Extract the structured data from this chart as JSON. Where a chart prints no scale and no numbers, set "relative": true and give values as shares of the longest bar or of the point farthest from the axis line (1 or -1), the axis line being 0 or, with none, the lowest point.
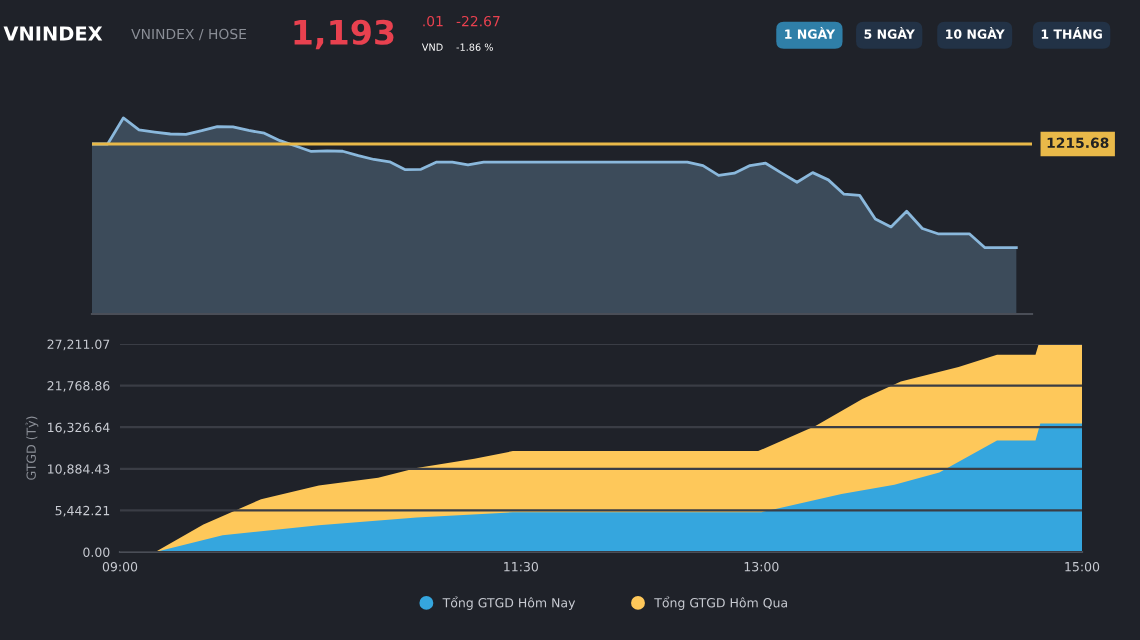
{
  "chart_data": [
    {
      "type": "area",
      "title": "VNINDEX",
      "subtitle": "VNINDEX / HOSE",
      "relative": true,
      "categories": [
        null,
        null,
        null,
        null,
        null,
        null,
        null,
        null,
        null,
        null,
        null,
        null,
        null,
        null,
        null,
        null,
        null,
        null,
        null,
        null,
        null,
        null,
        null,
        null,
        null,
        null,
        null,
        null,
        null,
        null,
        null,
        null,
        null,
        null,
        null,
        null,
        null,
        null,
        null,
        null,
        null,
        null,
        null,
        null,
        null,
        null,
        null,
        null,
        null,
        null,
        null,
        null,
        null,
        null,
        null,
        null,
        null,
        null,
        null,
        null
      ],
      "annotations": [
        "1,193",
        ".01",
        "VND",
        "-22.67",
        "-1.86 %",
        "1 NGÀY",
        "5 NGÀY",
        "10 NGÀY",
        "1 THÁNG",
        "1215.68"
      ],
      "series": [
        {
          "color": "#8ab8dc",
          "values": [
            0.867,
            0.867,
            1.0,
            0.939,
            0.928,
            0.918,
            0.916,
            0.935,
            0.956,
            0.954,
            0.936,
            0.922,
            0.884,
            0.857,
            0.829,
            0.832,
            0.83,
            0.808,
            0.788,
            0.776,
            0.736,
            0.738,
            0.775,
            0.775,
            0.76,
            0.775,
            0.775,
            0.775,
            0.775,
            0.775,
            0.775,
            0.775,
            0.775,
            0.775,
            0.775,
            0.775,
            0.775,
            0.775,
            0.775,
            0.757,
            0.707,
            0.718,
            0.757,
            0.769,
            0.72,
            0.672,
            0.721,
            0.684,
            0.611,
            0.605,
            0.485,
            0.444,
            0.524,
            0.436,
            0.409,
            0.409,
            0.409,
            0.338,
            0.338,
            0.338
          ]
        }
      ],
      "ref_lines": [
        {
          "axis": "y",
          "value": 0.867,
          "color": "#e9b949"
        }
      ]
    },
    {
      "type": "area",
      "ylabel": "GTGD (Tỷ)",
      "xlim": [
        9,
        15
      ],
      "xticks": [
        {
          "value": 9,
          "label": "09:00"
        },
        {
          "value": 11.5,
          "label": "11:30"
        },
        {
          "value": 13,
          "label": "13:00"
        },
        {
          "value": 15,
          "label": "15:00"
        }
      ],
      "ylim": [
        0,
        27211.07
      ],
      "yticks": [
        {
          "value": 0,
          "label": "0.00"
        },
        {
          "value": 5442.21,
          "label": "5,442.21"
        },
        {
          "value": 10884.43,
          "label": "10,884.43"
        },
        {
          "value": 16326.64,
          "label": "16,326.64"
        },
        {
          "value": 21768.86,
          "label": "21,768.86"
        },
        {
          "value": 27211.07,
          "label": "27,211.07"
        }
      ],
      "grid": "y",
      "legend": "bottom",
      "series": [
        {
          "name": "Tổng GTGD Hôm Qua",
          "color": "#fec85a",
          "x": [
            9.22,
            9.52,
            9.88,
            10.24,
            10.61,
            10.85,
            11.21,
            11.45,
            12.98,
            13.34,
            13.63,
            13.87,
            14.23,
            14.47,
            14.71,
            14.73,
            15.0
          ],
          "values": [
            0,
            3600,
            6900,
            8700,
            9700,
            11000,
            12200,
            13200,
            13200,
            16500,
            20000,
            22300,
            24200,
            25800,
            25800,
            27200,
            27200
          ]
        },
        {
          "name": "Tổng GTGD Hôm Nay",
          "color": "#35a6de",
          "x": [
            9.22,
            9.64,
            10.24,
            10.85,
            11.45,
            13.0,
            13.5,
            13.83,
            14.11,
            14.47,
            14.71,
            14.74,
            15.0
          ],
          "values": [
            0,
            2200,
            3500,
            4500,
            5200,
            5200,
            7600,
            8800,
            10400,
            14600,
            14600,
            16800,
            16800
          ]
        }
      ]
    }
  ]
}
